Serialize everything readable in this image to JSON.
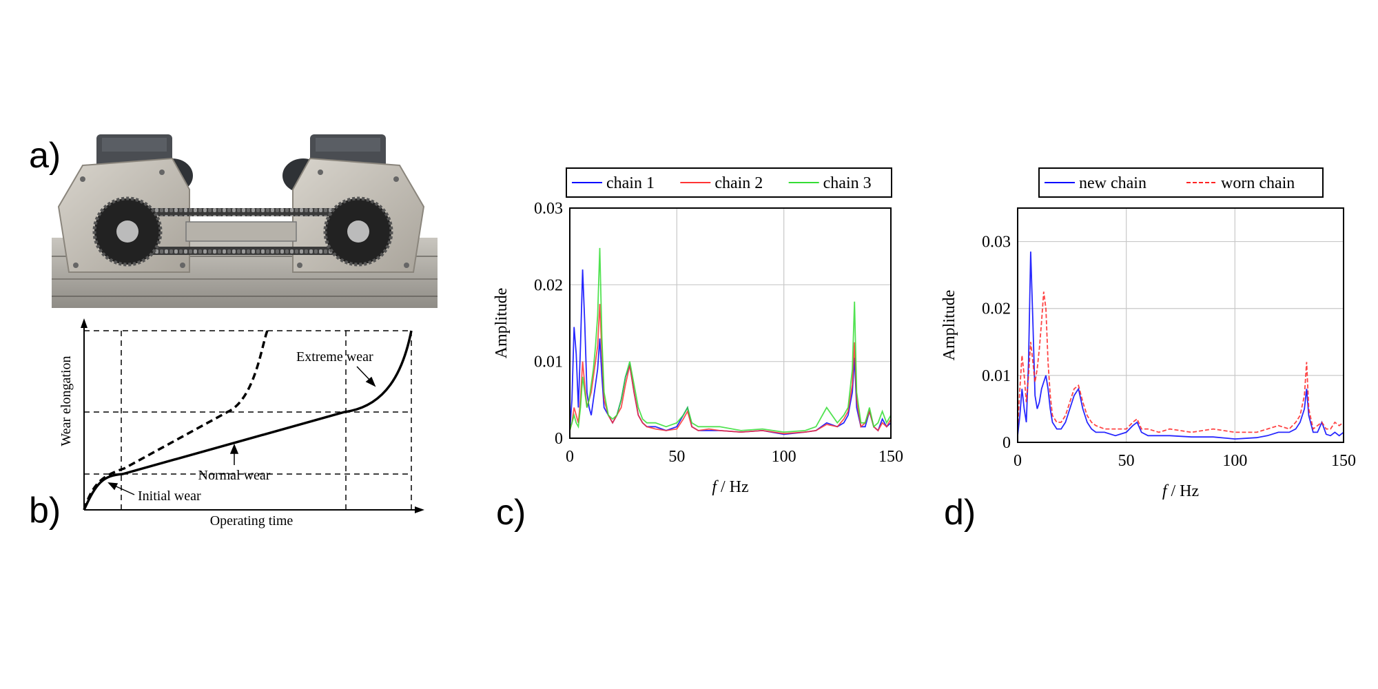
{
  "panels": {
    "a": {
      "letter": "a)"
    },
    "b": {
      "letter": "b)"
    },
    "c": {
      "letter": "c)"
    },
    "d": {
      "letter": "d)"
    }
  },
  "wear_diagram": {
    "y_label": "Wear elongation",
    "x_label": "Operating time",
    "annotations": {
      "initial": "Initial wear",
      "normal": "Normal wear",
      "extreme": "Extreme wear"
    }
  },
  "chart_data": [
    {
      "type": "line",
      "panel": "c",
      "xlabel_italic": "f",
      "xlabel_rest": " / Hz",
      "ylabel": "Amplitude",
      "xlim": [
        0,
        150
      ],
      "ylim": [
        0,
        0.03
      ],
      "xticks": [
        "0",
        "50",
        "100",
        "150"
      ],
      "yticks": [
        "0",
        "0.01",
        "0.02",
        "0.03"
      ],
      "grid": true,
      "legend_position": "top",
      "series": [
        {
          "name": "chain 1",
          "color": "#0000ff",
          "dash": "solid",
          "x": [
            0,
            1,
            2,
            3,
            4,
            5,
            6,
            7,
            8,
            9,
            10,
            11,
            12,
            13,
            14,
            15,
            16,
            18,
            20,
            22,
            24,
            26,
            28,
            30,
            32,
            34,
            36,
            40,
            45,
            50,
            53,
            55,
            57,
            60,
            65,
            70,
            80,
            90,
            100,
            110,
            115,
            120,
            125,
            128,
            130,
            132,
            133,
            134,
            136,
            138,
            140,
            142,
            144,
            146,
            148,
            150
          ],
          "y": [
            0.001,
            0.005,
            0.0145,
            0.011,
            0.004,
            0.012,
            0.022,
            0.015,
            0.006,
            0.004,
            0.003,
            0.005,
            0.007,
            0.009,
            0.013,
            0.008,
            0.004,
            0.003,
            0.002,
            0.003,
            0.005,
            0.008,
            0.0095,
            0.006,
            0.003,
            0.002,
            0.0015,
            0.0015,
            0.001,
            0.0015,
            0.003,
            0.004,
            0.0015,
            0.001,
            0.001,
            0.001,
            0.0008,
            0.001,
            0.0005,
            0.0008,
            0.001,
            0.002,
            0.0015,
            0.002,
            0.003,
            0.006,
            0.0105,
            0.004,
            0.0015,
            0.0015,
            0.0035,
            0.0015,
            0.001,
            0.0025,
            0.0015,
            0.002
          ]
        },
        {
          "name": "chain 2",
          "color": "#ff3333",
          "dash": "solid",
          "x": [
            0,
            1,
            2,
            3,
            4,
            5,
            6,
            7,
            8,
            9,
            10,
            11,
            12,
            13,
            14,
            15,
            16,
            18,
            20,
            22,
            24,
            26,
            28,
            30,
            32,
            34,
            36,
            40,
            45,
            50,
            53,
            55,
            57,
            60,
            65,
            70,
            80,
            90,
            100,
            110,
            115,
            120,
            125,
            128,
            130,
            132,
            133,
            134,
            136,
            138,
            140,
            142,
            144,
            146,
            148,
            150
          ],
          "y": [
            0.001,
            0.002,
            0.004,
            0.003,
            0.002,
            0.005,
            0.01,
            0.007,
            0.004,
            0.005,
            0.006,
            0.008,
            0.01,
            0.012,
            0.0175,
            0.011,
            0.005,
            0.003,
            0.002,
            0.003,
            0.004,
            0.007,
            0.0095,
            0.006,
            0.003,
            0.002,
            0.0015,
            0.0012,
            0.001,
            0.0012,
            0.0025,
            0.0035,
            0.0015,
            0.001,
            0.0012,
            0.001,
            0.0008,
            0.001,
            0.0006,
            0.0008,
            0.001,
            0.0018,
            0.0015,
            0.0025,
            0.0035,
            0.007,
            0.0125,
            0.005,
            0.0015,
            0.002,
            0.0035,
            0.0015,
            0.001,
            0.002,
            0.0015,
            0.0025
          ]
        },
        {
          "name": "chain 3",
          "color": "#33dd33",
          "dash": "solid",
          "x": [
            0,
            1,
            2,
            3,
            4,
            5,
            6,
            7,
            8,
            9,
            10,
            11,
            12,
            13,
            14,
            15,
            16,
            18,
            20,
            22,
            24,
            26,
            28,
            30,
            32,
            34,
            36,
            40,
            45,
            50,
            53,
            55,
            57,
            60,
            65,
            70,
            80,
            90,
            100,
            110,
            115,
            120,
            125,
            128,
            130,
            132,
            133,
            134,
            136,
            138,
            140,
            142,
            144,
            146,
            148,
            150
          ],
          "y": [
            0.001,
            0.002,
            0.003,
            0.002,
            0.0015,
            0.004,
            0.008,
            0.006,
            0.004,
            0.005,
            0.007,
            0.009,
            0.012,
            0.016,
            0.0248,
            0.013,
            0.006,
            0.003,
            0.0025,
            0.003,
            0.005,
            0.008,
            0.01,
            0.007,
            0.004,
            0.0025,
            0.002,
            0.002,
            0.0015,
            0.002,
            0.003,
            0.004,
            0.002,
            0.0015,
            0.0015,
            0.0015,
            0.001,
            0.0012,
            0.0008,
            0.001,
            0.0015,
            0.004,
            0.002,
            0.003,
            0.004,
            0.009,
            0.0178,
            0.006,
            0.002,
            0.002,
            0.004,
            0.0015,
            0.002,
            0.0035,
            0.002,
            0.003
          ]
        }
      ]
    },
    {
      "type": "line",
      "panel": "d",
      "xlabel_italic": "f",
      "xlabel_rest": " / Hz",
      "ylabel": "Amplitude",
      "xlim": [
        0,
        150
      ],
      "ylim": [
        0,
        0.035
      ],
      "xticks": [
        "0",
        "50",
        "100",
        "150"
      ],
      "yticks": [
        "0",
        "0.01",
        "0.02",
        "0.03"
      ],
      "ytick_values": [
        0,
        0.01,
        0.02,
        0.03
      ],
      "grid": true,
      "legend_position": "top",
      "series": [
        {
          "name": "new chain",
          "color": "#0000ff",
          "dash": "solid",
          "x": [
            0,
            1,
            2,
            3,
            4,
            5,
            6,
            7,
            8,
            9,
            10,
            11,
            12,
            13,
            14,
            15,
            16,
            18,
            20,
            22,
            24,
            26,
            28,
            30,
            32,
            34,
            36,
            40,
            45,
            50,
            53,
            55,
            57,
            60,
            65,
            70,
            80,
            90,
            100,
            110,
            115,
            120,
            125,
            128,
            130,
            132,
            133,
            134,
            136,
            138,
            140,
            142,
            144,
            146,
            148,
            150
          ],
          "y": [
            0.001,
            0.004,
            0.008,
            0.005,
            0.003,
            0.012,
            0.0285,
            0.018,
            0.007,
            0.005,
            0.006,
            0.008,
            0.009,
            0.01,
            0.008,
            0.005,
            0.003,
            0.002,
            0.002,
            0.003,
            0.005,
            0.007,
            0.008,
            0.005,
            0.003,
            0.002,
            0.0015,
            0.0015,
            0.001,
            0.0015,
            0.0025,
            0.003,
            0.0015,
            0.001,
            0.001,
            0.001,
            0.0008,
            0.0008,
            0.0005,
            0.0007,
            0.001,
            0.0015,
            0.0015,
            0.002,
            0.003,
            0.005,
            0.008,
            0.004,
            0.0015,
            0.0015,
            0.003,
            0.0012,
            0.001,
            0.0015,
            0.001,
            0.0015
          ]
        },
        {
          "name": "worn chain",
          "color": "#ff2222",
          "dash": "dashed",
          "x": [
            0,
            1,
            2,
            3,
            4,
            5,
            6,
            7,
            8,
            9,
            10,
            11,
            12,
            13,
            14,
            15,
            16,
            18,
            20,
            22,
            24,
            26,
            28,
            30,
            32,
            34,
            36,
            40,
            45,
            50,
            53,
            55,
            57,
            60,
            65,
            70,
            80,
            90,
            100,
            110,
            115,
            120,
            125,
            128,
            130,
            132,
            133,
            134,
            136,
            138,
            140,
            142,
            144,
            146,
            148,
            150
          ],
          "y": [
            0.002,
            0.008,
            0.013,
            0.01,
            0.006,
            0.01,
            0.015,
            0.012,
            0.009,
            0.011,
            0.014,
            0.018,
            0.0225,
            0.02,
            0.012,
            0.007,
            0.004,
            0.003,
            0.003,
            0.004,
            0.006,
            0.008,
            0.0085,
            0.006,
            0.004,
            0.003,
            0.0025,
            0.002,
            0.002,
            0.002,
            0.003,
            0.0035,
            0.002,
            0.002,
            0.0015,
            0.002,
            0.0015,
            0.002,
            0.0015,
            0.0015,
            0.002,
            0.0025,
            0.002,
            0.003,
            0.004,
            0.007,
            0.012,
            0.005,
            0.002,
            0.0025,
            0.003,
            0.002,
            0.002,
            0.003,
            0.0025,
            0.003
          ]
        }
      ]
    }
  ]
}
